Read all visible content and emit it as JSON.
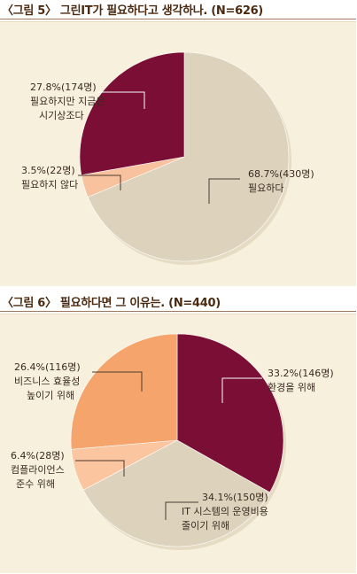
{
  "chart_data": [
    {
      "type": "pie",
      "title": "〈그림 5〉 그린IT가 필요하다고 생각하나. (N=626)",
      "slices": [
        {
          "label": "필요하다",
          "value_text": "68.7%(430명)",
          "percent": 68.7,
          "count": 430,
          "color": "#ddd3bd"
        },
        {
          "label": "필요하지 않다",
          "value_text": "3.5%(22명)",
          "percent": 3.5,
          "count": 22,
          "color": "#f8c29e"
        },
        {
          "label": "필요하지만 지금은 시기상조다",
          "value_text": "27.8%(174명)",
          "percent": 27.8,
          "count": 174,
          "color": "#7a0e35"
        }
      ]
    },
    {
      "type": "pie",
      "title": "〈그림 6〉 필요하다면 그 이유는. (N=440)",
      "slices": [
        {
          "label": "환경을 위해",
          "value_text": "33.2%(146명)",
          "percent": 33.2,
          "count": 146,
          "color": "#7a0e35"
        },
        {
          "label": "IT 시스템의 운영비용 줄이기 위해",
          "value_text": "34.1%(150명)",
          "percent": 34.1,
          "count": 150,
          "color": "#ddd3bd"
        },
        {
          "label": "컴플라이언스 준수 위해",
          "value_text": "6.4%(28명)",
          "percent": 6.4,
          "count": 28,
          "color": "#fbc5a0"
        },
        {
          "label": "비즈니스 효율성 높이기 위해",
          "value_text": "26.4%(116명)",
          "percent": 26.4,
          "count": 116,
          "color": "#f5a56c"
        }
      ]
    }
  ]
}
